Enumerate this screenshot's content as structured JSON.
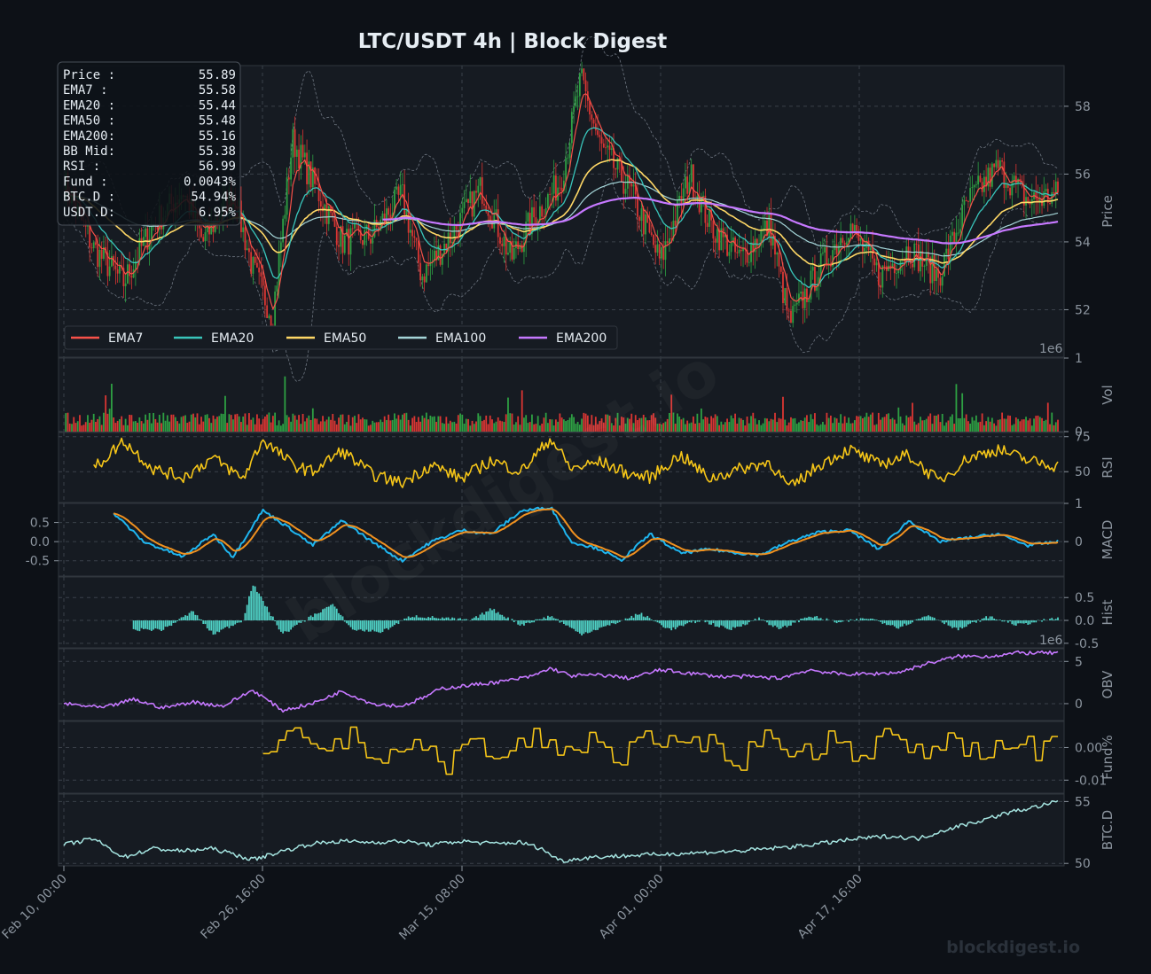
{
  "chart_data": {
    "type": "line",
    "title": "LTC/USDT  4h  |  Block Digest",
    "watermark": "blockdigest.io",
    "footer": "blockdigest.io",
    "x_tick_labels": [
      "Feb 10, 00:00",
      "Feb 26, 16:00",
      "Mar 15, 08:00",
      "Apr 01, 00:00",
      "Apr 17, 16:00"
    ],
    "x_range": [
      "Feb 10, 00:00",
      "May 04, 00:00"
    ],
    "info_box": {
      "rows": [
        {
          "label": "Price :",
          "value": "55.89"
        },
        {
          "label": "EMA7  :",
          "value": "55.58"
        },
        {
          "label": "EMA20 :",
          "value": "55.44"
        },
        {
          "label": "EMA50 :",
          "value": "55.48"
        },
        {
          "label": "EMA200:",
          "value": "55.16"
        },
        {
          "label": "BB Mid:",
          "value": "55.38"
        },
        {
          "label": "RSI   :",
          "value": "56.99"
        },
        {
          "label": "Fund  :",
          "value": "0.0043%"
        },
        {
          "label": "BTC.D :",
          "value": "54.94%"
        },
        {
          "label": "USDT.D:",
          "value": "6.95%"
        }
      ]
    },
    "legend": [
      {
        "name": "EMA7",
        "color": "#f85149"
      },
      {
        "name": "EMA20",
        "color": "#39c5bb"
      },
      {
        "name": "EMA50",
        "color": "#ffd866"
      },
      {
        "name": "EMA100",
        "color": "#a5d6d9"
      },
      {
        "name": "EMA200",
        "color": "#c678ff"
      }
    ],
    "panels": {
      "price": {
        "ylabel": "Price",
        "ylim": [
          50.6,
          59.2
        ],
        "ticks": [
          "52",
          "54",
          "56",
          "58"
        ],
        "keypoints": [
          [
            0,
            55.8
          ],
          [
            3,
            53.8
          ],
          [
            6,
            52.8
          ],
          [
            9,
            54.5
          ],
          [
            12,
            55.5
          ],
          [
            14,
            54.0
          ],
          [
            17,
            55.5
          ],
          [
            19,
            53.2
          ],
          [
            21,
            51.8
          ],
          [
            23,
            57.0
          ],
          [
            25,
            55.8
          ],
          [
            28,
            54.0
          ],
          [
            31,
            54.2
          ],
          [
            34,
            55.4
          ],
          [
            36,
            53.0
          ],
          [
            39,
            54.2
          ],
          [
            42,
            55.6
          ],
          [
            45,
            53.5
          ],
          [
            47,
            54.6
          ],
          [
            50,
            55.8
          ],
          [
            52,
            58.8
          ],
          [
            54,
            56.8
          ],
          [
            57,
            55.5
          ],
          [
            60,
            53.4
          ],
          [
            63,
            56.0
          ],
          [
            65,
            54.5
          ],
          [
            68,
            53.5
          ],
          [
            71,
            54.5
          ],
          [
            73,
            51.6
          ],
          [
            76,
            53.2
          ],
          [
            79,
            54.5
          ],
          [
            82,
            53.0
          ],
          [
            85,
            53.8
          ],
          [
            88,
            53.0
          ],
          [
            91,
            55.2
          ],
          [
            94,
            56.2
          ],
          [
            97,
            55.2
          ],
          [
            100,
            55.4
          ]
        ]
      },
      "volume": {
        "ylabel": "Vol",
        "ylim": [
          0,
          1000000
        ],
        "ticks": [
          "0",
          "1"
        ],
        "exponent": "1e6"
      },
      "rsi": {
        "ylabel": "RSI",
        "ylim": [
          28,
          78
        ],
        "ticks": [
          "50",
          "75"
        ],
        "keypoints": [
          [
            3,
            52
          ],
          [
            6,
            72
          ],
          [
            9,
            52
          ],
          [
            12,
            46
          ],
          [
            15,
            60
          ],
          [
            18,
            45
          ],
          [
            20,
            73
          ],
          [
            23,
            55
          ],
          [
            25,
            50
          ],
          [
            28,
            65
          ],
          [
            31,
            48
          ],
          [
            34,
            42
          ],
          [
            37,
            55
          ],
          [
            40,
            45
          ],
          [
            43,
            58
          ],
          [
            46,
            50
          ],
          [
            49,
            74
          ],
          [
            51,
            52
          ],
          [
            54,
            57
          ],
          [
            57,
            48
          ],
          [
            59,
            46
          ],
          [
            62,
            62
          ],
          [
            65,
            45
          ],
          [
            68,
            52
          ],
          [
            71,
            57
          ],
          [
            73,
            38
          ],
          [
            76,
            55
          ],
          [
            79,
            66
          ],
          [
            82,
            55
          ],
          [
            85,
            62
          ],
          [
            88,
            43
          ],
          [
            91,
            60
          ],
          [
            94,
            66
          ],
          [
            97,
            58
          ],
          [
            100,
            54
          ]
        ]
      },
      "macd": {
        "ylabel": "MACD",
        "ylim": [
          -0.9,
          1.0
        ],
        "ticks_left": [
          "0.5",
          "0.0",
          "-0.5"
        ],
        "ticks_right": [
          "0",
          "1"
        ],
        "keypoints": [
          [
            5,
            0.75
          ],
          [
            8,
            0.0
          ],
          [
            12,
            -0.4
          ],
          [
            15,
            0.2
          ],
          [
            17,
            -0.4
          ],
          [
            20,
            0.82
          ],
          [
            23,
            0.3
          ],
          [
            25,
            -0.1
          ],
          [
            28,
            0.55
          ],
          [
            31,
            0.0
          ],
          [
            34,
            -0.5
          ],
          [
            37,
            0.0
          ],
          [
            40,
            0.3
          ],
          [
            43,
            0.2
          ],
          [
            46,
            0.8
          ],
          [
            49,
            0.9
          ],
          [
            51,
            0.0
          ],
          [
            54,
            -0.2
          ],
          [
            56,
            -0.5
          ],
          [
            59,
            0.2
          ],
          [
            62,
            -0.3
          ],
          [
            65,
            -0.2
          ],
          [
            68,
            -0.3
          ],
          [
            70,
            -0.35
          ],
          [
            73,
            0.0
          ],
          [
            76,
            0.25
          ],
          [
            79,
            0.3
          ],
          [
            82,
            -0.2
          ],
          [
            85,
            0.55
          ],
          [
            88,
            0.0
          ],
          [
            91,
            0.1
          ],
          [
            94,
            0.2
          ],
          [
            97,
            -0.1
          ],
          [
            100,
            0.0
          ]
        ]
      },
      "hist": {
        "ylabel": "Hist",
        "ylim": [
          -0.6,
          0.95
        ],
        "ticks": [
          "0.5",
          "0.0",
          "-0.5"
        ],
        "keypoints": [
          [
            7,
            -0.2
          ],
          [
            10,
            -0.2
          ],
          [
            13,
            0.2
          ],
          [
            15,
            -0.3
          ],
          [
            18,
            0.0
          ],
          [
            19,
            0.8
          ],
          [
            22,
            -0.3
          ],
          [
            25,
            0.1
          ],
          [
            27,
            0.35
          ],
          [
            29,
            -0.2
          ],
          [
            32,
            -0.25
          ],
          [
            35,
            0.1
          ],
          [
            38,
            0.05
          ],
          [
            41,
            0.0
          ],
          [
            43,
            0.25
          ],
          [
            46,
            -0.1
          ],
          [
            49,
            0.1
          ],
          [
            52,
            -0.3
          ],
          [
            55,
            -0.1
          ],
          [
            58,
            0.15
          ],
          [
            61,
            -0.2
          ],
          [
            64,
            0.0
          ],
          [
            67,
            -0.2
          ],
          [
            70,
            0.05
          ],
          [
            72,
            -0.2
          ],
          [
            75,
            0.1
          ],
          [
            78,
            -0.05
          ],
          [
            81,
            0.05
          ],
          [
            84,
            -0.15
          ],
          [
            87,
            0.12
          ],
          [
            90,
            -0.2
          ],
          [
            93,
            0.08
          ],
          [
            96,
            -0.1
          ],
          [
            100,
            0.05
          ]
        ]
      },
      "obv": {
        "ylabel": "OBV",
        "ylim": [
          -2000000,
          6500000
        ],
        "ticks": [
          "0",
          "5"
        ],
        "exponent": "1e6",
        "keypoints": [
          [
            0,
            0.0
          ],
          [
            4,
            -0.5
          ],
          [
            7,
            0.5
          ],
          [
            10,
            -0.5
          ],
          [
            13,
            0.2
          ],
          [
            16,
            -0.3
          ],
          [
            19,
            1.6
          ],
          [
            22,
            -0.8
          ],
          [
            25,
            0.0
          ],
          [
            28,
            1.5
          ],
          [
            31,
            0.0
          ],
          [
            34,
            -0.3
          ],
          [
            36,
            0.6
          ],
          [
            38,
            1.8
          ],
          [
            41,
            2.2
          ],
          [
            44,
            2.6
          ],
          [
            47,
            3.2
          ],
          [
            49,
            4.2
          ],
          [
            51,
            3.3
          ],
          [
            54,
            3.4
          ],
          [
            57,
            3.0
          ],
          [
            60,
            4.0
          ],
          [
            63,
            3.6
          ],
          [
            66,
            3.2
          ],
          [
            69,
            3.2
          ],
          [
            72,
            3.0
          ],
          [
            75,
            4.0
          ],
          [
            78,
            3.5
          ],
          [
            81,
            3.5
          ],
          [
            84,
            3.7
          ],
          [
            87,
            4.8
          ],
          [
            90,
            5.6
          ],
          [
            93,
            5.6
          ],
          [
            96,
            6.0
          ],
          [
            100,
            6.0
          ]
        ]
      },
      "funding": {
        "ylabel": "Fund%",
        "ylim": [
          -0.014,
          0.008
        ],
        "ticks": [
          "0.00",
          "-0.01"
        ],
        "keypoints": [
          [
            20,
            -0.005
          ],
          [
            23,
            0.004
          ],
          [
            26,
            0.0
          ],
          [
            29,
            0.003
          ],
          [
            32,
            -0.003
          ],
          [
            35,
            0.002
          ],
          [
            38,
            -0.006
          ],
          [
            41,
            0.002
          ],
          [
            44,
            -0.004
          ],
          [
            47,
            0.004
          ],
          [
            50,
            -0.002
          ],
          [
            53,
            0.003
          ],
          [
            56,
            -0.003
          ],
          [
            59,
            0.004
          ],
          [
            62,
            -0.002
          ],
          [
            65,
            0.002
          ],
          [
            68,
            -0.004
          ],
          [
            71,
            0.005
          ],
          [
            74,
            -0.003
          ],
          [
            77,
            0.003
          ],
          [
            80,
            -0.002
          ],
          [
            83,
            0.004
          ],
          [
            86,
            -0.003
          ],
          [
            89,
            0.004
          ],
          [
            92,
            -0.003
          ],
          [
            95,
            0.004
          ],
          [
            98,
            -0.002
          ],
          [
            100,
            0.004
          ]
        ]
      },
      "btcd": {
        "ylabel": "BTC.D",
        "ylim": [
          49.8,
          55.6
        ],
        "ticks": [
          "50",
          "55"
        ],
        "keypoints": [
          [
            0,
            51.5
          ],
          [
            3,
            52.0
          ],
          [
            6,
            50.5
          ],
          [
            9,
            51.2
          ],
          [
            12,
            51.0
          ],
          [
            15,
            51.2
          ],
          [
            19,
            50.3
          ],
          [
            22,
            51.0
          ],
          [
            25,
            51.6
          ],
          [
            28,
            51.8
          ],
          [
            31,
            51.7
          ],
          [
            34,
            51.8
          ],
          [
            37,
            51.5
          ],
          [
            40,
            51.8
          ],
          [
            43,
            51.6
          ],
          [
            46,
            51.7
          ],
          [
            48,
            51.2
          ],
          [
            50,
            50.2
          ],
          [
            53,
            50.5
          ],
          [
            56,
            50.6
          ],
          [
            59,
            50.7
          ],
          [
            62,
            50.8
          ],
          [
            65,
            50.9
          ],
          [
            68,
            51.0
          ],
          [
            71,
            51.2
          ],
          [
            74,
            51.4
          ],
          [
            77,
            51.7
          ],
          [
            80,
            52.0
          ],
          [
            83,
            52.2
          ],
          [
            86,
            52.0
          ],
          [
            89,
            52.8
          ],
          [
            92,
            53.4
          ],
          [
            95,
            54.1
          ],
          [
            98,
            54.6
          ],
          [
            100,
            55.0
          ]
        ]
      }
    }
  }
}
